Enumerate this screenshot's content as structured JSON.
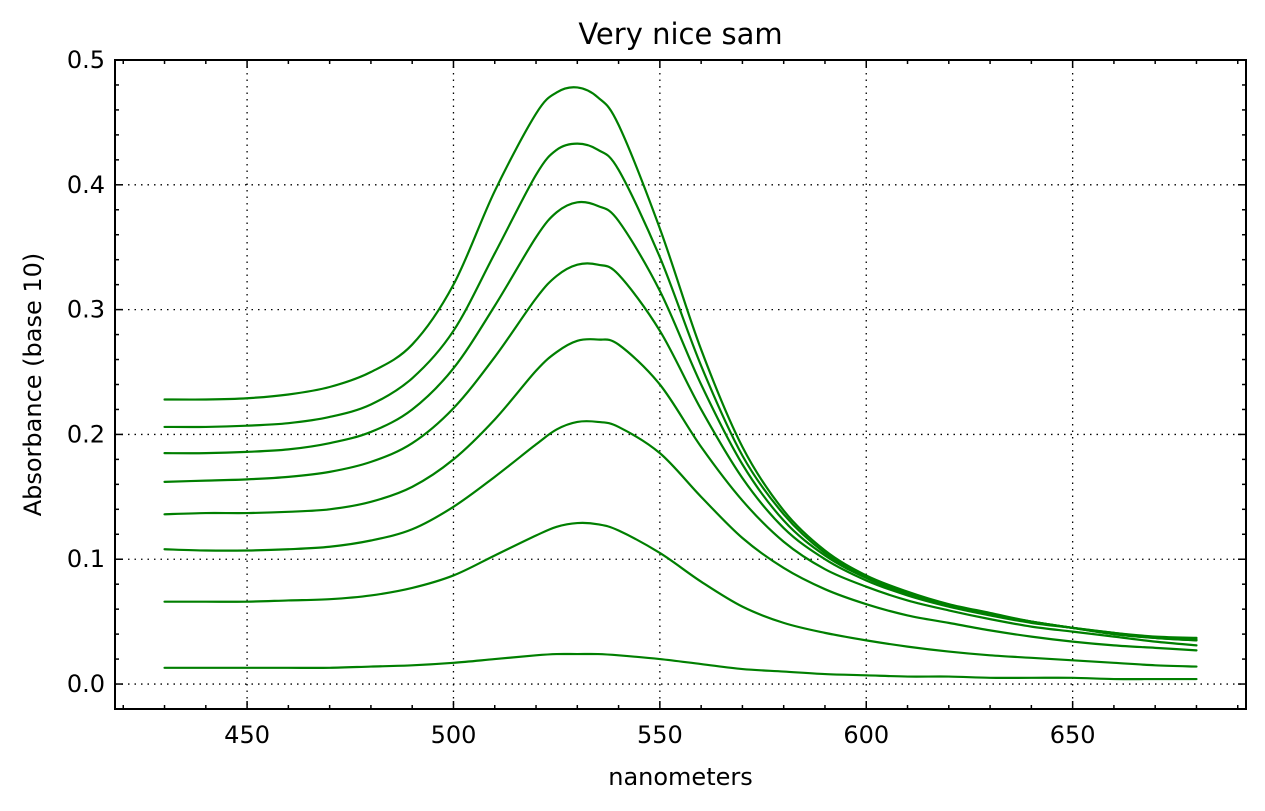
{
  "chart_data": {
    "type": "line",
    "title": "Very nice sam",
    "xlabel": "nanometers",
    "ylabel": "Absorbance (base 10)",
    "xlim": [
      418,
      692
    ],
    "ylim": [
      -0.02,
      0.5
    ],
    "xticks": [
      450,
      500,
      550,
      600,
      650
    ],
    "xtick_labels": [
      "450",
      "500",
      "550",
      "600",
      "650"
    ],
    "yticks": [
      0.0,
      0.1,
      0.2,
      0.3,
      0.4,
      0.5
    ],
    "ytick_labels": [
      "0.0",
      "0.1",
      "0.2",
      "0.3",
      "0.4",
      "0.5"
    ],
    "grid": true,
    "series_color": "#007f00",
    "x": [
      430,
      440,
      450,
      460,
      470,
      480,
      490,
      500,
      510,
      520,
      525,
      530,
      535,
      540,
      550,
      560,
      570,
      580,
      590,
      600,
      610,
      620,
      630,
      640,
      650,
      660,
      670,
      680
    ],
    "series": [
      {
        "values": [
          0.228,
          0.228,
          0.229,
          0.232,
          0.238,
          0.25,
          0.272,
          0.32,
          0.395,
          0.457,
          0.474,
          0.478,
          0.47,
          0.448,
          0.365,
          0.268,
          0.19,
          0.139,
          0.107,
          0.087,
          0.074,
          0.064,
          0.057,
          0.05,
          0.045,
          0.04,
          0.037,
          0.035
        ]
      },
      {
        "values": [
          0.206,
          0.206,
          0.207,
          0.209,
          0.214,
          0.224,
          0.245,
          0.283,
          0.345,
          0.408,
          0.428,
          0.433,
          0.428,
          0.412,
          0.342,
          0.255,
          0.183,
          0.136,
          0.105,
          0.086,
          0.073,
          0.063,
          0.056,
          0.05,
          0.045,
          0.04,
          0.037,
          0.036
        ]
      },
      {
        "values": [
          0.185,
          0.185,
          0.186,
          0.188,
          0.193,
          0.202,
          0.22,
          0.253,
          0.303,
          0.358,
          0.378,
          0.386,
          0.383,
          0.371,
          0.315,
          0.24,
          0.176,
          0.131,
          0.103,
          0.085,
          0.072,
          0.063,
          0.056,
          0.05,
          0.045,
          0.041,
          0.038,
          0.037
        ]
      },
      {
        "values": [
          0.162,
          0.163,
          0.164,
          0.166,
          0.17,
          0.178,
          0.193,
          0.221,
          0.262,
          0.309,
          0.327,
          0.336,
          0.336,
          0.328,
          0.283,
          0.22,
          0.165,
          0.125,
          0.1,
          0.083,
          0.071,
          0.062,
          0.055,
          0.049,
          0.045,
          0.041,
          0.037,
          0.035
        ]
      },
      {
        "values": [
          0.136,
          0.137,
          0.137,
          0.138,
          0.14,
          0.146,
          0.158,
          0.18,
          0.212,
          0.251,
          0.266,
          0.275,
          0.276,
          0.272,
          0.24,
          0.19,
          0.147,
          0.114,
          0.092,
          0.078,
          0.067,
          0.059,
          0.052,
          0.046,
          0.042,
          0.038,
          0.034,
          0.031
        ]
      },
      {
        "values": [
          0.108,
          0.107,
          0.107,
          0.108,
          0.11,
          0.115,
          0.124,
          0.142,
          0.166,
          0.192,
          0.204,
          0.21,
          0.21,
          0.206,
          0.185,
          0.15,
          0.117,
          0.093,
          0.076,
          0.064,
          0.055,
          0.049,
          0.043,
          0.038,
          0.034,
          0.031,
          0.029,
          0.027
        ]
      },
      {
        "values": [
          0.066,
          0.066,
          0.066,
          0.067,
          0.068,
          0.071,
          0.077,
          0.087,
          0.103,
          0.119,
          0.126,
          0.129,
          0.128,
          0.123,
          0.105,
          0.082,
          0.062,
          0.049,
          0.041,
          0.035,
          0.03,
          0.026,
          0.023,
          0.021,
          0.019,
          0.017,
          0.015,
          0.014
        ]
      },
      {
        "values": [
          0.013,
          0.013,
          0.013,
          0.013,
          0.013,
          0.014,
          0.015,
          0.017,
          0.02,
          0.023,
          0.024,
          0.024,
          0.024,
          0.023,
          0.02,
          0.016,
          0.012,
          0.01,
          0.008,
          0.007,
          0.006,
          0.006,
          0.005,
          0.005,
          0.005,
          0.004,
          0.004,
          0.004
        ]
      }
    ]
  }
}
